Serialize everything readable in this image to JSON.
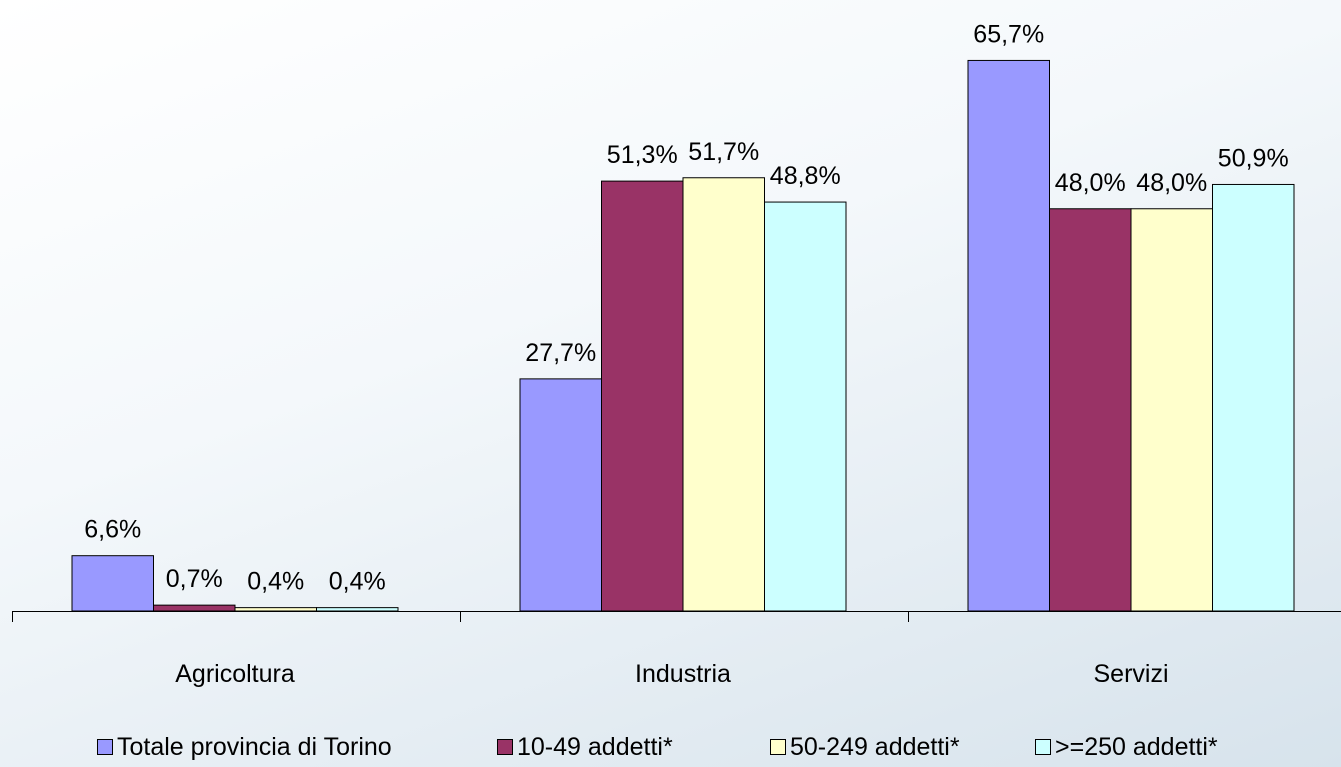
{
  "chart_data": {
    "type": "bar",
    "categories": [
      "Agricoltura",
      "Industria",
      "Servizi"
    ],
    "series": [
      {
        "name": "Totale provincia di Torino",
        "values": [
          6.6,
          27.7,
          65.7
        ],
        "labels": [
          "6,6%",
          "27,7%",
          "65,7%"
        ],
        "color": "#9999ff"
      },
      {
        "name": "10-49 addetti*",
        "values": [
          0.7,
          51.3,
          48.0
        ],
        "labels": [
          "0,7%",
          "51,3%",
          "48,0%"
        ],
        "color": "#993366"
      },
      {
        "name": "50-249 addetti*",
        "values": [
          0.4,
          51.7,
          48.0
        ],
        "labels": [
          "0,4%",
          "51,7%",
          "48,0%"
        ],
        "color": "#ffffcc"
      },
      {
        "name": ">=250 addetti*",
        "values": [
          0.4,
          48.8,
          50.9
        ],
        "labels": [
          "0,4%",
          "48,8%",
          "50,9%"
        ],
        "color": "#ccffff"
      }
    ],
    "title": "",
    "xlabel": "",
    "ylabel": "",
    "ylim": [
      0,
      70
    ],
    "grid": false,
    "legend_position": "bottom"
  }
}
